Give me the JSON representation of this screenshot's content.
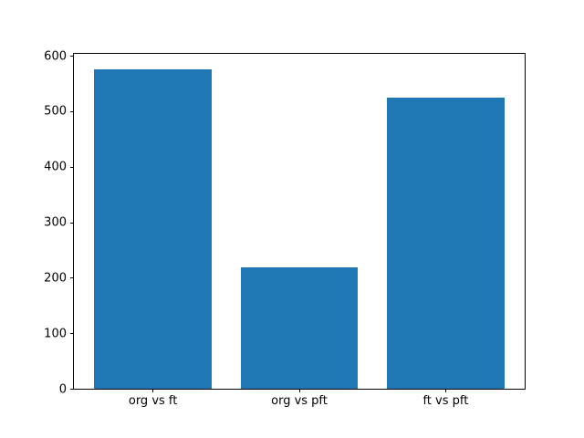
{
  "figure": {
    "background": "#ffffff",
    "spine_color": "#000000",
    "tick_color": "#000000"
  },
  "chart_data": {
    "type": "bar",
    "categories": [
      "org vs ft",
      "org vs pft",
      "ft vs pft"
    ],
    "values": [
      576,
      218,
      524
    ],
    "title": "",
    "xlabel": "",
    "ylabel": "",
    "ylim": [
      0,
      605
    ],
    "yticks": [
      0,
      100,
      200,
      300,
      400,
      500,
      600
    ],
    "bar_color": "#1f77b4",
    "bar_width_ratio": 0.8,
    "grid": false,
    "legend_position": "none"
  }
}
